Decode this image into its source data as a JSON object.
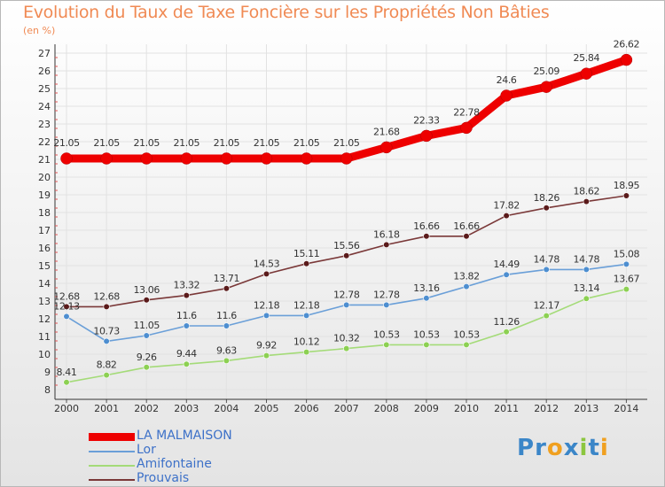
{
  "title": "Evolution du Taux de Taxe Foncière sur les Propriétés Non Bâties",
  "unit_label": "(en %)",
  "logo": {
    "text": "Proxiti",
    "letters": [
      {
        "ch": "P",
        "color": "#3b86c8"
      },
      {
        "ch": "r",
        "color": "#3b86c8"
      },
      {
        "ch": "o",
        "color": "#f0a020"
      },
      {
        "ch": "x",
        "color": "#3b86c8"
      },
      {
        "ch": "i",
        "color": "#8cc63f"
      },
      {
        "ch": "t",
        "color": "#3b86c8"
      },
      {
        "ch": "i",
        "color": "#f0a020"
      }
    ]
  },
  "chart_data": {
    "type": "line",
    "title": "Evolution du Taux de Taxe Foncière sur les Propriétés Non Bâties",
    "ylabel": "(en %)",
    "xlabel": "",
    "ylim": [
      8,
      27
    ],
    "yticks": [
      8,
      9,
      10,
      11,
      12,
      13,
      14,
      15,
      16,
      17,
      18,
      19,
      20,
      21,
      22,
      23,
      24,
      25,
      26,
      27
    ],
    "categories": [
      "2000",
      "2001",
      "2002",
      "2003",
      "2004",
      "2005",
      "2006",
      "2007",
      "2008",
      "2009",
      "2010",
      "2011",
      "2012",
      "2013",
      "2014"
    ],
    "legend_position": "bottom-left",
    "series": [
      {
        "name": "LA MALMAISON",
        "color": "#ee0000",
        "emphasis": true,
        "values": [
          21.05,
          21.05,
          21.05,
          21.05,
          21.05,
          21.05,
          21.05,
          21.05,
          21.68,
          22.33,
          22.78,
          24.6,
          25.09,
          25.84,
          26.62
        ],
        "labels": [
          "21.05",
          "21.05",
          "21.05",
          "21.05",
          "21.05",
          "21.05",
          "21.05",
          "21.05",
          "21.68",
          "22.33",
          "22.78",
          "24.6",
          "25.09",
          "25.84",
          "26.62"
        ]
      },
      {
        "name": "Lor",
        "color": "#6a9fd8",
        "marker": "#4d8ed0",
        "values": [
          12.13,
          10.73,
          11.05,
          11.6,
          11.6,
          12.18,
          12.18,
          12.78,
          12.78,
          13.16,
          13.82,
          14.49,
          14.78,
          14.78,
          15.08
        ],
        "labels": [
          "12.13",
          "10.73",
          "11.05",
          "11.6",
          "11.6",
          "12.18",
          "12.18",
          "12.78",
          "12.78",
          "13.16",
          "13.82",
          "14.49",
          "14.78",
          "14.78",
          "15.08"
        ]
      },
      {
        "name": "Amifontaine",
        "color": "#a4db78",
        "marker": "#8cd052",
        "values": [
          8.41,
          8.82,
          9.26,
          9.44,
          9.63,
          9.92,
          10.12,
          10.32,
          10.53,
          10.53,
          10.53,
          11.26,
          12.17,
          13.14,
          13.67
        ],
        "labels": [
          "8.41",
          "8.82",
          "9.26",
          "9.44",
          "9.63",
          "9.92",
          "10.12",
          "10.32",
          "10.53",
          "10.53",
          "10.53",
          "11.26",
          "12.17",
          "13.14",
          "13.67"
        ]
      },
      {
        "name": "Prouvais",
        "color": "#7a3838",
        "marker": "#5a1a1a",
        "values": [
          12.68,
          12.68,
          13.06,
          13.32,
          13.71,
          14.53,
          15.11,
          15.56,
          16.18,
          16.66,
          16.66,
          17.82,
          18.26,
          18.62,
          18.95
        ],
        "labels": [
          "12.68",
          "12.68",
          "13.06",
          "13.32",
          "13.71",
          "14.53",
          "15.11",
          "15.56",
          "16.18",
          "16.66",
          "16.66",
          "17.82",
          "18.26",
          "18.62",
          "18.95"
        ]
      }
    ]
  }
}
